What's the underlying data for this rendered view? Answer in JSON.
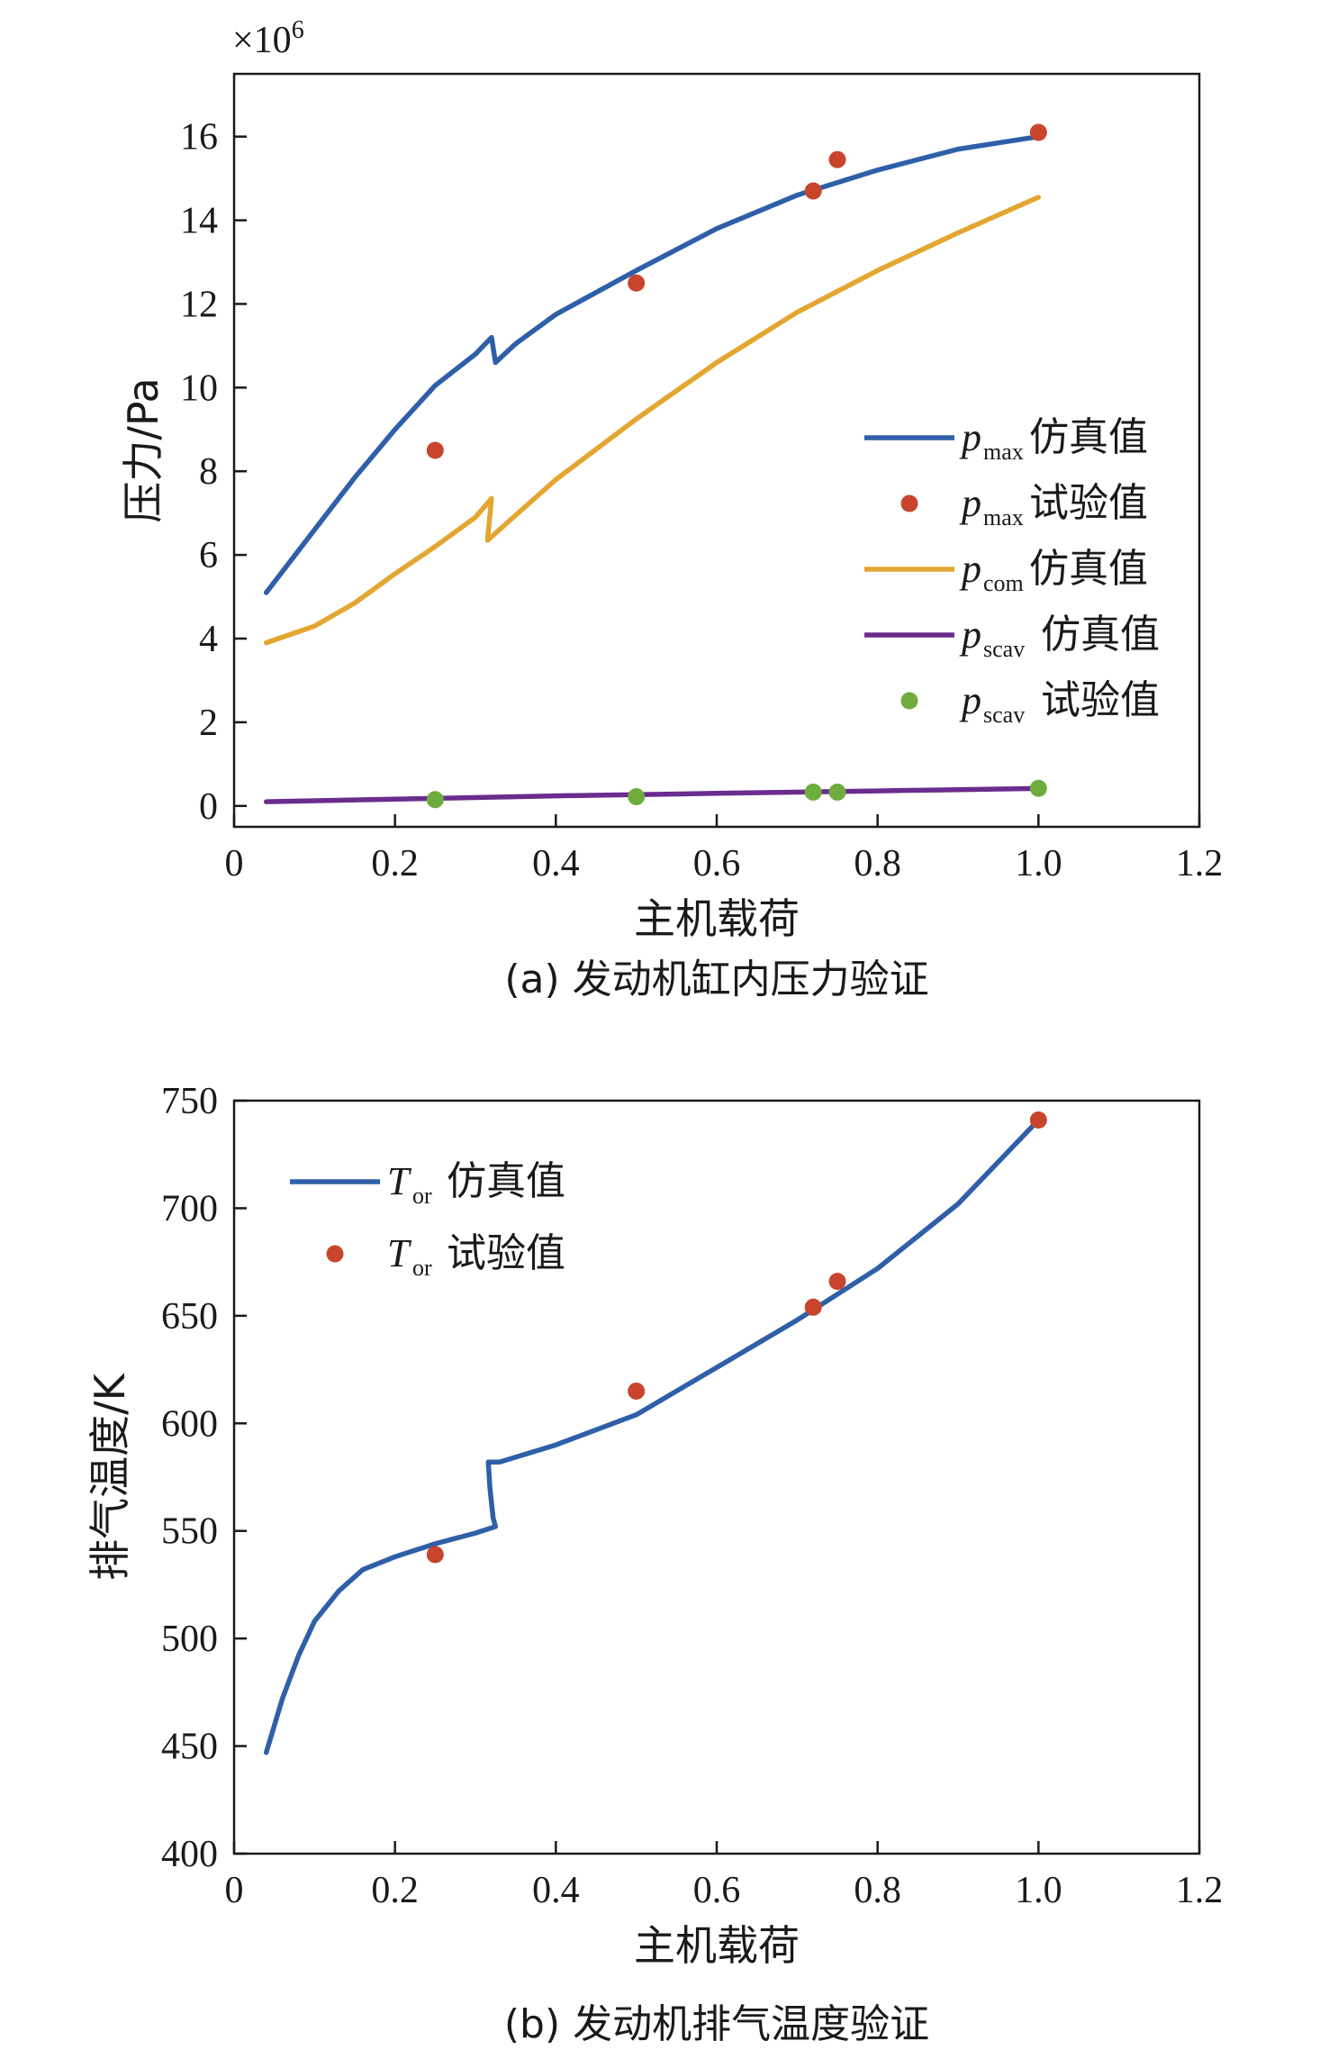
{
  "chart_data": [
    {
      "type": "line",
      "xlabel": "主机载荷",
      "ylabel": "压力/Pa",
      "caption": "(a) 发动机缸内压力验证",
      "multiplier": "×10",
      "multiplier_exp": "6",
      "xlim": [
        0,
        1.2
      ],
      "ylim": [
        -0.5,
        17.5
      ],
      "xticks": [
        "0",
        "0.2",
        "0.4",
        "0.6",
        "0.8",
        "1.0",
        "1.2"
      ],
      "xtick_values": [
        0,
        0.2,
        0.4,
        0.6,
        0.8,
        1.0,
        1.2
      ],
      "yticks": [
        "0",
        "2",
        "4",
        "6",
        "8",
        "10",
        "12",
        "14",
        "16"
      ],
      "ytick_values": [
        0,
        2,
        4,
        6,
        8,
        10,
        12,
        14,
        16
      ],
      "grid": false,
      "legend_position": "middle-right",
      "colors": {
        "blue": "#2f5fa8",
        "orange": "#e3a630",
        "purple": "#6a2c8e",
        "red": "#c8442c",
        "green": "#6fac3e"
      },
      "series": [
        {
          "name_main": "p",
          "name_sub": "max",
          "name_suffix": "仿真值",
          "kind": "line",
          "color": "#2f5fa8",
          "x": [
            0.04,
            0.1,
            0.15,
            0.2,
            0.25,
            0.3,
            0.32,
            0.325,
            0.35,
            0.4,
            0.5,
            0.6,
            0.7,
            0.8,
            0.9,
            1.0
          ],
          "y": [
            5.1,
            6.6,
            7.85,
            9.0,
            10.05,
            10.8,
            11.2,
            10.6,
            11.05,
            11.75,
            12.8,
            13.8,
            14.6,
            15.2,
            15.7,
            16.0
          ]
        },
        {
          "name_main": "p",
          "name_sub": "max",
          "name_suffix": "试验值",
          "kind": "scatter",
          "color": "#c8442c",
          "x": [
            0.25,
            0.5,
            0.72,
            0.75,
            1.0
          ],
          "y": [
            8.5,
            12.5,
            14.7,
            15.45,
            16.1
          ]
        },
        {
          "name_main": "p",
          "name_sub": "com",
          "name_suffix": "仿真值",
          "kind": "line",
          "color": "#e3a630",
          "x": [
            0.04,
            0.1,
            0.15,
            0.2,
            0.25,
            0.3,
            0.32,
            0.315,
            0.35,
            0.4,
            0.5,
            0.6,
            0.7,
            0.8,
            0.9,
            1.0
          ],
          "y": [
            3.9,
            4.3,
            4.85,
            5.55,
            6.2,
            6.9,
            7.35,
            6.35,
            6.95,
            7.8,
            9.25,
            10.6,
            11.8,
            12.8,
            13.7,
            14.55
          ]
        },
        {
          "name_main": "p",
          "name_sub": "scav",
          "name_suffix": "仿真值",
          "kind": "line",
          "color": "#6a2c8e",
          "x": [
            0.04,
            0.2,
            0.4,
            0.6,
            0.8,
            1.0
          ],
          "y": [
            0.1,
            0.16,
            0.24,
            0.3,
            0.36,
            0.42
          ]
        },
        {
          "name_main": "p",
          "name_sub": "scav",
          "name_suffix": "试验值",
          "kind": "scatter",
          "color": "#6fac3e",
          "x": [
            0.25,
            0.5,
            0.72,
            0.75,
            1.0
          ],
          "y": [
            0.15,
            0.22,
            0.33,
            0.33,
            0.42
          ]
        }
      ]
    },
    {
      "type": "line",
      "xlabel": "主机载荷",
      "ylabel": "排气温度/K",
      "caption": "(b) 发动机排气温度验证",
      "xlim": [
        0,
        1.2
      ],
      "ylim": [
        400,
        750
      ],
      "xticks": [
        "0",
        "0.2",
        "0.4",
        "0.6",
        "0.8",
        "1.0",
        "1.2"
      ],
      "xtick_values": [
        0,
        0.2,
        0.4,
        0.6,
        0.8,
        1.0,
        1.2
      ],
      "yticks": [
        "400",
        "450",
        "500",
        "550",
        "600",
        "650",
        "700",
        "750"
      ],
      "ytick_values": [
        400,
        450,
        500,
        550,
        600,
        650,
        700,
        750
      ],
      "grid": false,
      "legend_position": "top-left",
      "series": [
        {
          "name_main": "T",
          "name_sub": "or",
          "name_suffix": "仿真值",
          "kind": "line",
          "color": "#2f5fa8",
          "x": [
            0.04,
            0.06,
            0.08,
            0.1,
            0.13,
            0.16,
            0.2,
            0.25,
            0.3,
            0.325,
            0.322,
            0.318,
            0.316,
            0.33,
            0.4,
            0.5,
            0.6,
            0.7,
            0.8,
            0.9,
            1.0
          ],
          "y": [
            447,
            472,
            492,
            508,
            522,
            532,
            538,
            544,
            549,
            552,
            556,
            570,
            582,
            582,
            590,
            604,
            626,
            648,
            672,
            702,
            741
          ]
        },
        {
          "name_main": "T",
          "name_sub": "or",
          "name_suffix": "试验值",
          "kind": "scatter",
          "color": "#c8442c",
          "x": [
            0.25,
            0.5,
            0.72,
            0.75,
            1.0
          ],
          "y": [
            539,
            615,
            654,
            666,
            741
          ]
        }
      ]
    }
  ]
}
